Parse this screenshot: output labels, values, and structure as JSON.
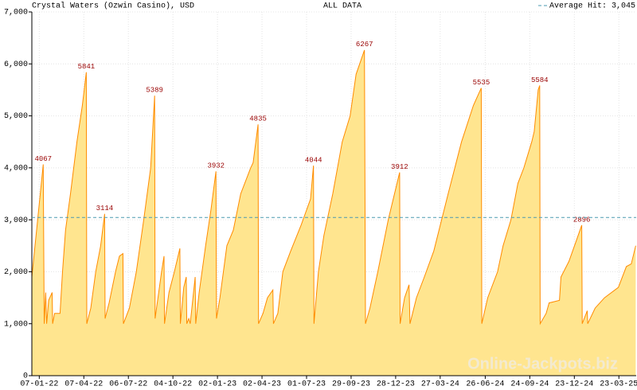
{
  "chart_data": {
    "type": "area",
    "title": "Crystal Waters (Ozwin Casino), USD",
    "subtitle": "ALL DATA",
    "watermark": "Online-Jackpots.biz",
    "color": "#ffe58f",
    "line_color": "#ff8c00",
    "grid": true,
    "average": {
      "value": 3045,
      "label": "Average Hit: 3,045",
      "color": "#4a9ab0"
    },
    "xlim": [
      "23-12-21",
      "27-04-25"
    ],
    "xticks": [
      "07-01-22",
      "07-04-22",
      "06-07-22",
      "04-10-22",
      "02-01-23",
      "02-04-23",
      "01-07-23",
      "29-09-23",
      "28-12-23",
      "27-03-24",
      "26-06-24",
      "24-09-24",
      "23-12-24",
      "23-03-25"
    ],
    "ylim": [
      0,
      7000
    ],
    "yticks": [
      0,
      {
        "value": 1000,
        "label": "1,000"
      },
      {
        "value": 2000,
        "label": "2,000"
      },
      {
        "value": 3000,
        "label": "3,000"
      },
      {
        "value": 4000,
        "label": "4,000"
      },
      {
        "value": 5000,
        "label": "5,000"
      },
      {
        "value": 6000,
        "label": "6,000"
      },
      {
        "value": 7000,
        "label": "7,000"
      }
    ],
    "x": [
      "23-12-21",
      "15-01-22",
      "17-01-22",
      "20-01-22",
      "22-01-22",
      "26-01-22",
      "02-02-22",
      "03-02-22",
      "07-02-22",
      "18-02-22",
      "23-02-22",
      "01-03-22",
      "11-03-22",
      "24-03-22",
      "04-04-22",
      "12-04-22",
      "13-04-22",
      "21-04-22",
      "01-05-22",
      "11-05-22",
      "19-05-22",
      "20-05-22",
      "28-05-22",
      "10-06-22",
      "18-06-22",
      "25-06-22",
      "26-06-22",
      "08-07-22",
      "22-07-22",
      "06-08-22",
      "20-08-22",
      "28-08-22",
      "29-08-22",
      "11-09-22",
      "16-09-22",
      "17-09-22",
      "26-09-22",
      "07-10-22",
      "18-10-22",
      "19-10-22",
      "26-10-22",
      "31-10-22",
      "01-11-22",
      "05-11-22",
      "08-11-22",
      "18-11-22",
      "19-11-22",
      "26-11-22",
      "09-12-22",
      "20-12-22",
      "30-12-22",
      "31-12-22",
      "07-01-23",
      "21-01-23",
      "03-02-23",
      "18-02-23",
      "10-03-23",
      "15-03-23",
      "25-03-23",
      "26-03-23",
      "04-04-23",
      "13-04-23",
      "24-04-23",
      "25-04-23",
      "04-05-23",
      "14-05-23",
      "30-05-23",
      "20-06-23",
      "09-07-23",
      "15-07-23",
      "16-07-23",
      "25-07-23",
      "05-08-23",
      "23-08-23",
      "11-09-23",
      "27-09-23",
      "09-10-23",
      "26-10-23",
      "28-10-23",
      "06-11-23",
      "22-11-23",
      "13-12-23",
      "05-01-24",
      "06-01-24",
      "15-01-24",
      "24-01-24",
      "26-01-24",
      "08-02-24",
      "24-02-24",
      "14-03-24",
      "12-04-24",
      "09-05-24",
      "02-06-24",
      "18-06-24",
      "19-06-24",
      "01-07-24",
      "21-07-24",
      "01-08-24",
      "17-08-24",
      "31-08-24",
      "12-09-24",
      "28-09-24",
      "03-10-24",
      "11-10-24",
      "14-10-24",
      "15-10-24",
      "27-10-24",
      "02-11-24",
      "23-11-24",
      "26-11-24",
      "12-12-24",
      "27-12-24",
      "07-01-25",
      "08-01-25",
      "18-01-25",
      "19-01-25",
      "03-02-25",
      "22-02-25",
      "22-03-25",
      "07-04-25",
      "17-04-25",
      "26-04-25"
    ],
    "values": [
      1900,
      4067,
      1000,
      1600,
      1000,
      1450,
      1600,
      1000,
      1200,
      1200,
      2000,
      2800,
      3500,
      4500,
      5200,
      5841,
      1000,
      1300,
      2000,
      2500,
      3114,
      1100,
      1400,
      2000,
      2300,
      2350,
      1000,
      1300,
      2000,
      3000,
      4000,
      5389,
      1100,
      2000,
      2300,
      1000,
      1600,
      2000,
      2450,
      1000,
      1700,
      1900,
      1000,
      1100,
      1000,
      1900,
      1000,
      1600,
      2500,
      3200,
      3932,
      1100,
      1500,
      2500,
      2800,
      3500,
      4000,
      4100,
      4835,
      1000,
      1200,
      1500,
      1650,
      1000,
      1200,
      2000,
      2400,
      2900,
      3400,
      4044,
      1000,
      2000,
      2700,
      3500,
      4500,
      5000,
      5800,
      6267,
      1000,
      1300,
      2000,
      3000,
      3912,
      1000,
      1500,
      1750,
      1000,
      1500,
      1900,
      2400,
      3500,
      4500,
      5200,
      5535,
      1000,
      1500,
      2000,
      2500,
      3000,
      3700,
      4000,
      4500,
      4700,
      5500,
      5584,
      1000,
      1200,
      1400,
      1450,
      1900,
      2200,
      2600,
      2896,
      1000,
      1250,
      1000,
      1300,
      1500,
      1700,
      2100,
      2150,
      2500
    ]
  }
}
